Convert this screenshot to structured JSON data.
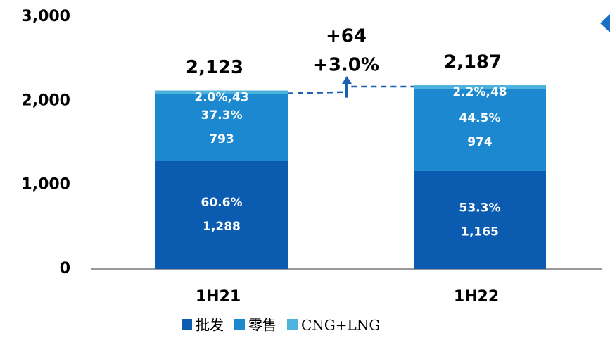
{
  "chart_data": {
    "type": "stacked_bar",
    "categories": [
      "1H21",
      "1H22"
    ],
    "series": [
      {
        "name": "批发",
        "color": "#0b5cb1",
        "values": [
          1288,
          1165
        ],
        "value_labels": [
          "1,288",
          "1,165"
        ],
        "shares": [
          60.6,
          53.3
        ],
        "share_labels": [
          "60.6%",
          "53.3%"
        ]
      },
      {
        "name": "零售",
        "color": "#1b88cf",
        "values": [
          793,
          974
        ],
        "shares": [
          37.3,
          44.5
        ],
        "share_labels": [
          "37.3%",
          "44.5%"
        ]
      },
      {
        "name": "CNG+LNG",
        "color": "#4db2dc",
        "values": [
          43,
          48
        ],
        "value_labels": [
          "2.0%,43",
          "2.2%,48"
        ]
      }
    ],
    "totals": [
      2123,
      2187
    ],
    "total_labels": [
      "2,123",
      "2,187"
    ],
    "annotation": {
      "change": 64,
      "change_label": "+64",
      "pct": 3.0,
      "pct_label": "+3.0%"
    },
    "ylim": [
      0,
      3000
    ],
    "yticks": [
      0,
      {
        "value": 1000,
        "label": "1,000"
      },
      {
        "value": 2000,
        "label": "2,000"
      },
      {
        "value": 3000,
        "label": "3,000"
      }
    ]
  }
}
